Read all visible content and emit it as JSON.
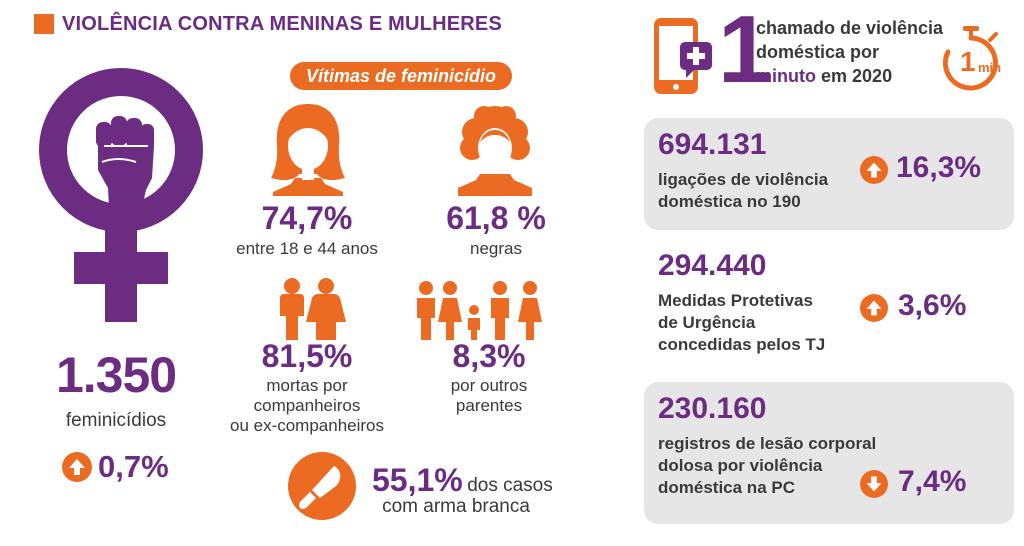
{
  "header": {
    "title": "VIOLÊNCIA CONTRA MENINAS E MULHERES"
  },
  "left": {
    "feminicides_value": "1.350",
    "feminicides_label": "feminicídios",
    "feminicides_change": "0,7%",
    "feminicides_change_direction": "up"
  },
  "victims": {
    "title": "Vítimas de feminicídio",
    "age": {
      "value": "74,7%",
      "label": "entre 18 e 44 anos"
    },
    "race": {
      "value": "61,8 %",
      "label": "negras"
    },
    "partners": {
      "value": "81,5%",
      "label_lines": [
        "mortas por",
        "companheiros",
        "ou ex-companheiros"
      ]
    },
    "relatives": {
      "value": "8,3%",
      "label_lines": [
        "por outros",
        "parentes"
      ]
    },
    "weapon": {
      "value": "55,1%",
      "label_inline": "dos casos",
      "label_line2": "com arma branca"
    }
  },
  "calls": {
    "number": "1",
    "line1": "chamado de violência",
    "line2": "doméstica por",
    "line3_bold": "minuto",
    "line3_rest": "em 2020",
    "clock_number": "1",
    "clock_unit": "min"
  },
  "stats": [
    {
      "value": "694.131",
      "desc_lines": [
        "ligações de violência",
        "doméstica no 190"
      ],
      "change": "16,3%",
      "direction": "up"
    },
    {
      "value": "294.440",
      "desc_lines": [
        "Medidas Protetivas",
        "de Urgência",
        "concedidas pelos TJ"
      ],
      "change": "3,6%",
      "direction": "up"
    },
    {
      "value": "230.160",
      "desc_lines": [
        "registros de lesão corporal",
        "dolosa por violência",
        "doméstica na PC"
      ],
      "change": "7,4%",
      "direction": "down"
    }
  ],
  "colors": {
    "purple": "#6b2c82",
    "orange": "#ec6b22",
    "gray_box": "#e6e6e6",
    "text": "#3a3a3a"
  },
  "icons": [
    "female-symbol-fist-icon",
    "woman-head-icon",
    "woman-curly-hair-icon",
    "couple-icon",
    "family-icon",
    "knife-icon",
    "phone-plus-icon",
    "stopwatch-icon",
    "arrow-up-icon",
    "arrow-down-icon"
  ]
}
